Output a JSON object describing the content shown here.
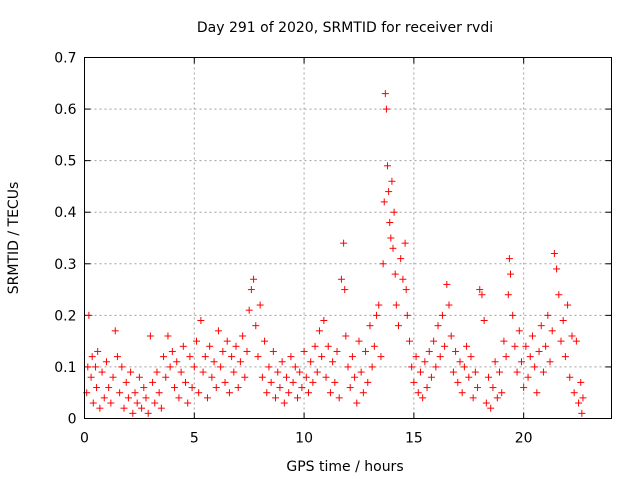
{
  "chart_data": {
    "type": "scatter",
    "title": "Day 291 of 2020, SRMTID for receiver rvdi",
    "xlabel": "GPS time / hours",
    "ylabel": "SRMTID / TECUs",
    "xlim": [
      0,
      24
    ],
    "ylim": [
      0,
      0.7
    ],
    "xticks": [
      0,
      5,
      10,
      15,
      20
    ],
    "xtick_labels": [
      "0",
      "5",
      "10",
      "15",
      "20"
    ],
    "yticks": [
      0,
      0.1,
      0.2,
      0.3,
      0.4,
      0.5,
      0.6,
      0.7
    ],
    "ytick_labels": [
      "0",
      "0.1",
      "0.2",
      "0.3",
      "0.4",
      "0.5",
      "0.6",
      "0.7"
    ],
    "grid": true,
    "marker": "+",
    "color": "#ff0000",
    "series": [
      {
        "name": "SRMTID",
        "points": [
          [
            0.1,
            0.05
          ],
          [
            0.15,
            0.1
          ],
          [
            0.2,
            0.2
          ],
          [
            0.3,
            0.08
          ],
          [
            0.35,
            0.12
          ],
          [
            0.4,
            0.03
          ],
          [
            0.5,
            0.1
          ],
          [
            0.55,
            0.06
          ],
          [
            0.6,
            0.13
          ],
          [
            0.7,
            0.02
          ],
          [
            0.8,
            0.09
          ],
          [
            0.9,
            0.04
          ],
          [
            1.0,
            0.11
          ],
          [
            1.1,
            0.06
          ],
          [
            1.2,
            0.03
          ],
          [
            1.3,
            0.08
          ],
          [
            1.4,
            0.17
          ],
          [
            1.5,
            0.12
          ],
          [
            1.6,
            0.05
          ],
          [
            1.7,
            0.1
          ],
          [
            1.8,
            0.02
          ],
          [
            1.9,
            0.07
          ],
          [
            2.0,
            0.04
          ],
          [
            2.1,
            0.09
          ],
          [
            2.2,
            0.01
          ],
          [
            2.3,
            0.05
          ],
          [
            2.4,
            0.03
          ],
          [
            2.5,
            0.08
          ],
          [
            2.6,
            0.02
          ],
          [
            2.7,
            0.06
          ],
          [
            2.8,
            0.04
          ],
          [
            2.9,
            0.01
          ],
          [
            3.0,
            0.16
          ],
          [
            3.1,
            0.07
          ],
          [
            3.2,
            0.03
          ],
          [
            3.3,
            0.09
          ],
          [
            3.4,
            0.05
          ],
          [
            3.5,
            0.02
          ],
          [
            3.6,
            0.12
          ],
          [
            3.7,
            0.08
          ],
          [
            3.8,
            0.16
          ],
          [
            3.9,
            0.1
          ],
          [
            4.0,
            0.13
          ],
          [
            4.1,
            0.06
          ],
          [
            4.2,
            0.11
          ],
          [
            4.3,
            0.04
          ],
          [
            4.4,
            0.09
          ],
          [
            4.5,
            0.14
          ],
          [
            4.6,
            0.07
          ],
          [
            4.7,
            0.03
          ],
          [
            4.8,
            0.12
          ],
          [
            4.9,
            0.06
          ],
          [
            5.0,
            0.1
          ],
          [
            5.1,
            0.15
          ],
          [
            5.2,
            0.05
          ],
          [
            5.3,
            0.19
          ],
          [
            5.4,
            0.09
          ],
          [
            5.5,
            0.12
          ],
          [
            5.6,
            0.04
          ],
          [
            5.7,
            0.14
          ],
          [
            5.8,
            0.08
          ],
          [
            5.9,
            0.11
          ],
          [
            6.0,
            0.06
          ],
          [
            6.1,
            0.17
          ],
          [
            6.2,
            0.1
          ],
          [
            6.3,
            0.13
          ],
          [
            6.4,
            0.07
          ],
          [
            6.5,
            0.15
          ],
          [
            6.6,
            0.05
          ],
          [
            6.7,
            0.12
          ],
          [
            6.8,
            0.09
          ],
          [
            6.9,
            0.14
          ],
          [
            7.0,
            0.06
          ],
          [
            7.1,
            0.11
          ],
          [
            7.2,
            0.16
          ],
          [
            7.3,
            0.08
          ],
          [
            7.4,
            0.13
          ],
          [
            7.5,
            0.21
          ],
          [
            7.6,
            0.25
          ],
          [
            7.7,
            0.27
          ],
          [
            7.8,
            0.18
          ],
          [
            7.9,
            0.12
          ],
          [
            8.0,
            0.22
          ],
          [
            8.1,
            0.08
          ],
          [
            8.2,
            0.15
          ],
          [
            8.3,
            0.05
          ],
          [
            8.4,
            0.1
          ],
          [
            8.5,
            0.07
          ],
          [
            8.6,
            0.13
          ],
          [
            8.7,
            0.04
          ],
          [
            8.8,
            0.09
          ],
          [
            8.9,
            0.06
          ],
          [
            9.0,
            0.11
          ],
          [
            9.1,
            0.03
          ],
          [
            9.2,
            0.08
          ],
          [
            9.3,
            0.05
          ],
          [
            9.4,
            0.12
          ],
          [
            9.5,
            0.07
          ],
          [
            9.6,
            0.1
          ],
          [
            9.7,
            0.04
          ],
          [
            9.8,
            0.09
          ],
          [
            9.9,
            0.06
          ],
          [
            10.0,
            0.13
          ],
          [
            10.1,
            0.08
          ],
          [
            10.2,
            0.05
          ],
          [
            10.3,
            0.11
          ],
          [
            10.4,
            0.07
          ],
          [
            10.5,
            0.14
          ],
          [
            10.6,
            0.09
          ],
          [
            10.7,
            0.17
          ],
          [
            10.8,
            0.12
          ],
          [
            10.9,
            0.19
          ],
          [
            11.0,
            0.08
          ],
          [
            11.1,
            0.14
          ],
          [
            11.2,
            0.05
          ],
          [
            11.3,
            0.11
          ],
          [
            11.4,
            0.07
          ],
          [
            11.5,
            0.13
          ],
          [
            11.6,
            0.04
          ],
          [
            11.7,
            0.27
          ],
          [
            11.8,
            0.34
          ],
          [
            11.85,
            0.25
          ],
          [
            11.9,
            0.16
          ],
          [
            12.0,
            0.1
          ],
          [
            12.1,
            0.06
          ],
          [
            12.2,
            0.12
          ],
          [
            12.3,
            0.08
          ],
          [
            12.4,
            0.03
          ],
          [
            12.5,
            0.15
          ],
          [
            12.6,
            0.09
          ],
          [
            12.7,
            0.05
          ],
          [
            12.8,
            0.13
          ],
          [
            12.9,
            0.07
          ],
          [
            13.0,
            0.18
          ],
          [
            13.1,
            0.1
          ],
          [
            13.2,
            0.14
          ],
          [
            13.3,
            0.2
          ],
          [
            13.4,
            0.22
          ],
          [
            13.5,
            0.12
          ],
          [
            13.6,
            0.3
          ],
          [
            13.65,
            0.42
          ],
          [
            13.7,
            0.63
          ],
          [
            13.75,
            0.6
          ],
          [
            13.8,
            0.49
          ],
          [
            13.85,
            0.44
          ],
          [
            13.9,
            0.38
          ],
          [
            13.95,
            0.35
          ],
          [
            14.0,
            0.46
          ],
          [
            14.05,
            0.33
          ],
          [
            14.1,
            0.4
          ],
          [
            14.15,
            0.28
          ],
          [
            14.2,
            0.22
          ],
          [
            14.3,
            0.18
          ],
          [
            14.4,
            0.31
          ],
          [
            14.5,
            0.27
          ],
          [
            14.6,
            0.34
          ],
          [
            14.65,
            0.25
          ],
          [
            14.7,
            0.2
          ],
          [
            14.8,
            0.15
          ],
          [
            14.9,
            0.1
          ],
          [
            15.0,
            0.07
          ],
          [
            15.1,
            0.12
          ],
          [
            15.2,
            0.05
          ],
          [
            15.3,
            0.09
          ],
          [
            15.4,
            0.04
          ],
          [
            15.5,
            0.11
          ],
          [
            15.6,
            0.06
          ],
          [
            15.7,
            0.13
          ],
          [
            15.8,
            0.08
          ],
          [
            15.9,
            0.15
          ],
          [
            16.0,
            0.1
          ],
          [
            16.1,
            0.18
          ],
          [
            16.2,
            0.12
          ],
          [
            16.3,
            0.2
          ],
          [
            16.4,
            0.14
          ],
          [
            16.5,
            0.26
          ],
          [
            16.6,
            0.22
          ],
          [
            16.7,
            0.16
          ],
          [
            16.8,
            0.09
          ],
          [
            16.9,
            0.13
          ],
          [
            17.0,
            0.07
          ],
          [
            17.1,
            0.11
          ],
          [
            17.2,
            0.05
          ],
          [
            17.3,
            0.1
          ],
          [
            17.4,
            0.14
          ],
          [
            17.5,
            0.08
          ],
          [
            17.6,
            0.12
          ],
          [
            17.7,
            0.04
          ],
          [
            17.8,
            0.09
          ],
          [
            17.9,
            0.06
          ],
          [
            18.0,
            0.25
          ],
          [
            18.1,
            0.24
          ],
          [
            18.2,
            0.19
          ],
          [
            18.3,
            0.03
          ],
          [
            18.4,
            0.08
          ],
          [
            18.5,
            0.02
          ],
          [
            18.6,
            0.06
          ],
          [
            18.7,
            0.11
          ],
          [
            18.8,
            0.04
          ],
          [
            18.9,
            0.09
          ],
          [
            19.0,
            0.05
          ],
          [
            19.1,
            0.15
          ],
          [
            19.2,
            0.12
          ],
          [
            19.3,
            0.24
          ],
          [
            19.35,
            0.31
          ],
          [
            19.4,
            0.28
          ],
          [
            19.5,
            0.2
          ],
          [
            19.6,
            0.14
          ],
          [
            19.7,
            0.09
          ],
          [
            19.8,
            0.17
          ],
          [
            19.9,
            0.11
          ],
          [
            20.0,
            0.06
          ],
          [
            20.1,
            0.14
          ],
          [
            20.2,
            0.08
          ],
          [
            20.3,
            0.12
          ],
          [
            20.4,
            0.16
          ],
          [
            20.5,
            0.1
          ],
          [
            20.6,
            0.05
          ],
          [
            20.7,
            0.13
          ],
          [
            20.8,
            0.18
          ],
          [
            20.9,
            0.09
          ],
          [
            21.0,
            0.14
          ],
          [
            21.1,
            0.2
          ],
          [
            21.2,
            0.11
          ],
          [
            21.3,
            0.17
          ],
          [
            21.4,
            0.32
          ],
          [
            21.5,
            0.29
          ],
          [
            21.6,
            0.24
          ],
          [
            21.7,
            0.15
          ],
          [
            21.8,
            0.19
          ],
          [
            21.9,
            0.12
          ],
          [
            22.0,
            0.22
          ],
          [
            22.1,
            0.08
          ],
          [
            22.2,
            0.16
          ],
          [
            22.3,
            0.05
          ],
          [
            22.4,
            0.15
          ],
          [
            22.5,
            0.03
          ],
          [
            22.6,
            0.07
          ],
          [
            22.65,
            0.01
          ],
          [
            22.7,
            0.04
          ]
        ]
      }
    ]
  }
}
